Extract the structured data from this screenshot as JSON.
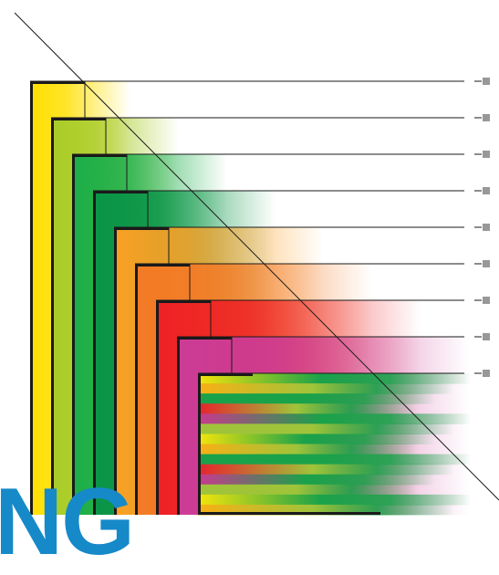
{
  "logo": {
    "text": "NG",
    "color": "#1689c9"
  },
  "tick_icon": "list-tick-icon",
  "bands": [
    {
      "name": "yellow-band",
      "color": "#ffe000"
    },
    {
      "name": "lime-band",
      "color": "#a8cc2a"
    },
    {
      "name": "green-band",
      "color": "#1aae49"
    },
    {
      "name": "dark-green-band",
      "color": "#0a9447"
    },
    {
      "name": "light-orange-band",
      "color": "#fba025"
    },
    {
      "name": "orange-band",
      "color": "#f37a26"
    },
    {
      "name": "red-band",
      "color": "#ee2125"
    },
    {
      "name": "magenta-band",
      "color": "#cb3c98"
    }
  ],
  "composite_colors": [
    "#f5e50a",
    "#f9b014",
    "#1aa24a",
    "#e8222c",
    "#c9398f",
    "#9fc43a"
  ]
}
